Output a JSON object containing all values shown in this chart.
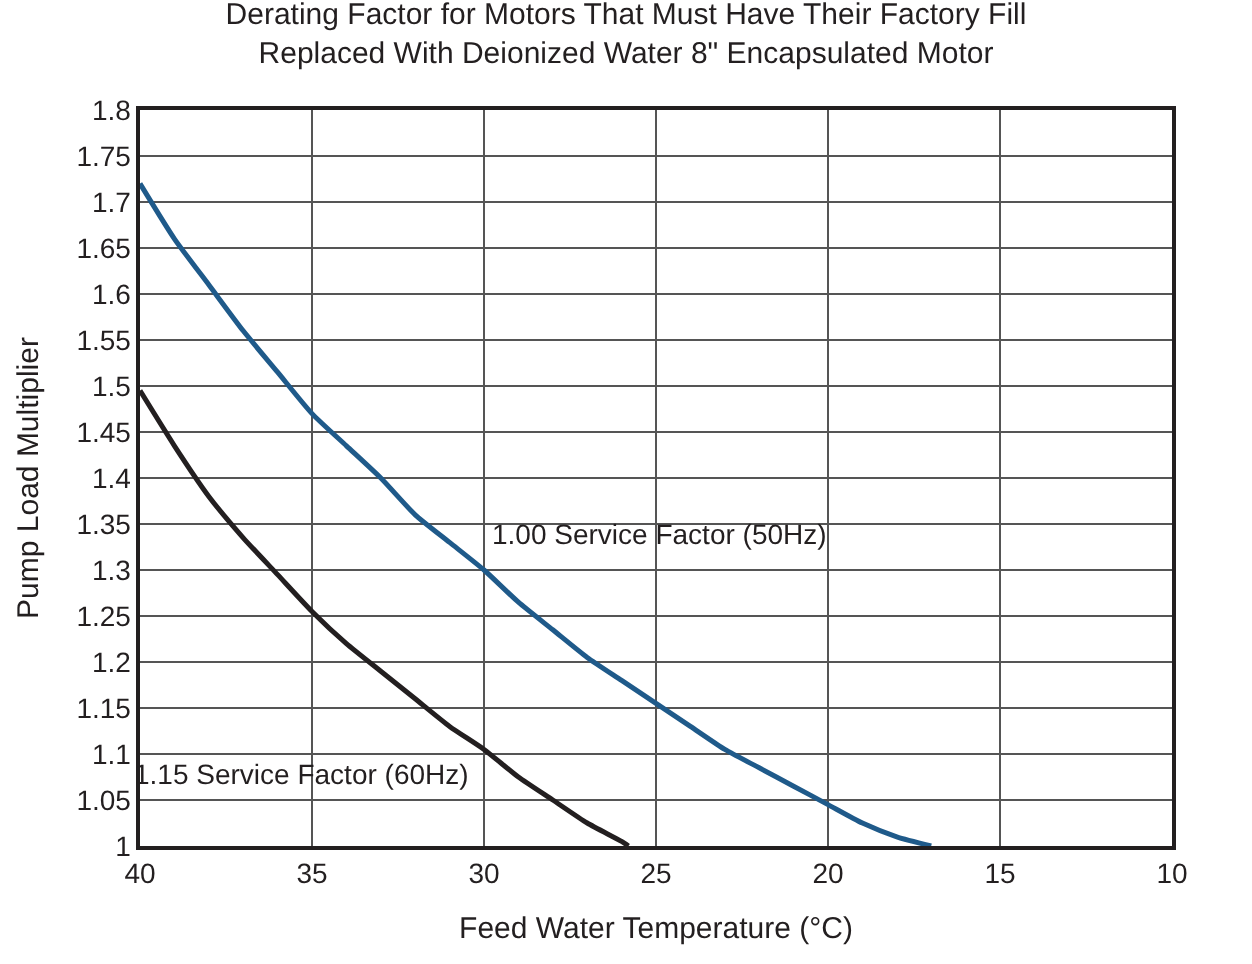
{
  "chart_data": {
    "type": "line",
    "title": "Derating Factor for Motors That Must Have Their Factory Fill\nReplaced With Deionized Water 8\" Encapsulated Motor",
    "xlabel": "Feed Water Temperature (°C)",
    "ylabel": "Pump Load Multiplier",
    "xlim": [
      40,
      10
    ],
    "xticks": [
      40,
      35,
      30,
      25,
      20,
      15,
      10
    ],
    "ylim": [
      1,
      1.8
    ],
    "yticks": [
      1,
      1.05,
      1.1,
      1.15,
      1.2,
      1.25,
      1.3,
      1.35,
      1.4,
      1.45,
      1.5,
      1.55,
      1.6,
      1.65,
      1.7,
      1.75,
      1.8
    ],
    "grid": true,
    "legend": false,
    "marker": "none",
    "line_style": "solid",
    "series": [
      {
        "name": "1.00 Service Factor (50Hz)",
        "color": "#1f5a8a",
        "x": [
          40,
          39,
          38,
          37,
          36,
          35,
          34,
          33,
          32,
          31,
          30,
          29,
          28,
          27,
          26,
          25,
          24,
          23,
          22,
          21,
          20,
          19,
          18,
          17
        ],
        "values": [
          1.72,
          1.66,
          1.61,
          1.56,
          1.515,
          1.47,
          1.435,
          1.4,
          1.36,
          1.33,
          1.3,
          1.265,
          1.235,
          1.205,
          1.18,
          1.155,
          1.13,
          1.105,
          1.085,
          1.065,
          1.045,
          1.025,
          1.01,
          1.0
        ]
      },
      {
        "name": "1.15 Service Factor (60Hz)",
        "color": "#231f20",
        "x": [
          40,
          39,
          38,
          37,
          36,
          35,
          34,
          33,
          32,
          31,
          30,
          29,
          28,
          27,
          26,
          25.8
        ],
        "values": [
          1.495,
          1.435,
          1.38,
          1.335,
          1.295,
          1.255,
          1.22,
          1.19,
          1.16,
          1.13,
          1.105,
          1.075,
          1.05,
          1.025,
          1.005,
          1.0
        ]
      }
    ]
  }
}
